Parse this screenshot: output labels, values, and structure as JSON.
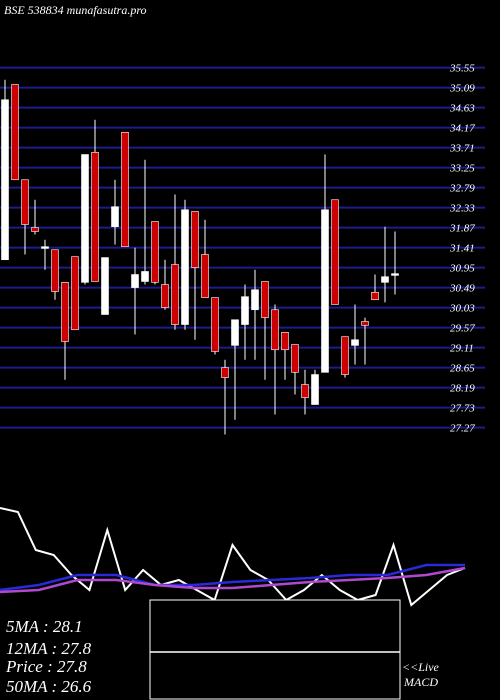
{
  "chart_data": [
    {
      "type": "candlestick",
      "title": "BSE 538834  munafasutra.pro",
      "up_color": "#ffffff",
      "down_color": "#cc0000",
      "grid": true,
      "grid_color": "#1c1c8c",
      "ylim": [
        26.8,
        36.0
      ],
      "yticks": [
        27.27,
        27.73,
        28.19,
        28.65,
        29.11,
        29.57,
        30.03,
        30.49,
        30.95,
        31.41,
        31.87,
        32.33,
        32.79,
        33.25,
        33.71,
        34.17,
        34.63,
        35.09,
        35.55
      ],
      "open": [
        31.13,
        35.16,
        32.97,
        31.87,
        31.39,
        31.36,
        30.61,
        31.2,
        30.61,
        33.6,
        29.87,
        31.89,
        34.06,
        30.49,
        30.63,
        32.01,
        30.56,
        31.02,
        29.64,
        32.24,
        31.25,
        30.26,
        28.65,
        29.16,
        29.64,
        29.98,
        30.63,
        29.98,
        29.46,
        29.18,
        28.26,
        27.8,
        28.54,
        32.51,
        29.36,
        29.16,
        29.71,
        30.38,
        30.61,
        30.77
      ],
      "high": [
        35.27,
        35.16,
        32.97,
        32.51,
        31.59,
        31.36,
        30.61,
        31.2,
        33.55,
        34.35,
        31.18,
        32.97,
        34.06,
        31.41,
        33.43,
        32.01,
        31.13,
        32.63,
        32.51,
        32.24,
        32.05,
        30.26,
        28.83,
        29.75,
        30.56,
        30.9,
        30.63,
        30.1,
        29.46,
        29.18,
        28.6,
        28.6,
        33.55,
        32.51,
        29.36,
        30.1,
        29.8,
        30.79,
        31.89,
        31.78
      ],
      "low": [
        31.13,
        32.97,
        31.25,
        31.71,
        30.9,
        30.21,
        28.37,
        29.52,
        30.56,
        30.63,
        29.87,
        31.48,
        31.43,
        29.41,
        30.56,
        30.56,
        29.98,
        29.52,
        29.52,
        29.29,
        30.26,
        28.95,
        27.11,
        27.45,
        28.83,
        28.83,
        28.37,
        27.57,
        28.37,
        28.03,
        27.57,
        27.8,
        28.54,
        30.1,
        28.42,
        28.72,
        28.72,
        30.21,
        30.15,
        30.33
      ],
      "close": [
        34.81,
        32.97,
        31.94,
        31.78,
        31.43,
        30.4,
        29.25,
        29.52,
        33.55,
        30.63,
        31.18,
        32.35,
        31.43,
        30.79,
        30.86,
        30.61,
        30.03,
        29.64,
        32.28,
        30.95,
        30.26,
        29.02,
        28.42,
        29.75,
        30.28,
        30.44,
        29.8,
        29.06,
        29.06,
        28.54,
        27.96,
        28.49,
        32.28,
        30.1,
        28.49,
        29.29,
        29.62,
        30.21,
        30.74,
        30.81
      ]
    },
    {
      "type": "line",
      "ylim": [
        0,
        100
      ],
      "series": [
        {
          "color": "#ffffff",
          "values": [
            92.7,
            89.1,
            54.5,
            50,
            31.8,
            18.2,
            72.7,
            18.2,
            36.4,
            22.7,
            27.3,
            18.2,
            9.1,
            59.1,
            36.4,
            27.3,
            9.1,
            18.2,
            31.8,
            18.2,
            9.1,
            13.6,
            59.1,
            4.5,
            18.2,
            31.8,
            38.2
          ]
        },
        {
          "color": "#2a2ad8",
          "values": [
            18.2,
            22.7,
            31.8,
            31.8,
            22.7,
            22.7,
            25.5,
            27.3,
            29.1,
            31.8,
            31.8,
            40.9,
            40.9
          ]
        },
        {
          "color": "#b048d0",
          "values": [
            16.4,
            18.2,
            27.3,
            27.3,
            22.7,
            20,
            20,
            22.7,
            25.5,
            27.3,
            29.1,
            31.8,
            38.2
          ]
        }
      ]
    }
  ],
  "stats": [
    "5MA : 28.1",
    "12MA : 27.8",
    "Price  : 27.8",
    "50MA : 26.6"
  ],
  "live_label": "<<Live",
  "macd_label": "MACD"
}
